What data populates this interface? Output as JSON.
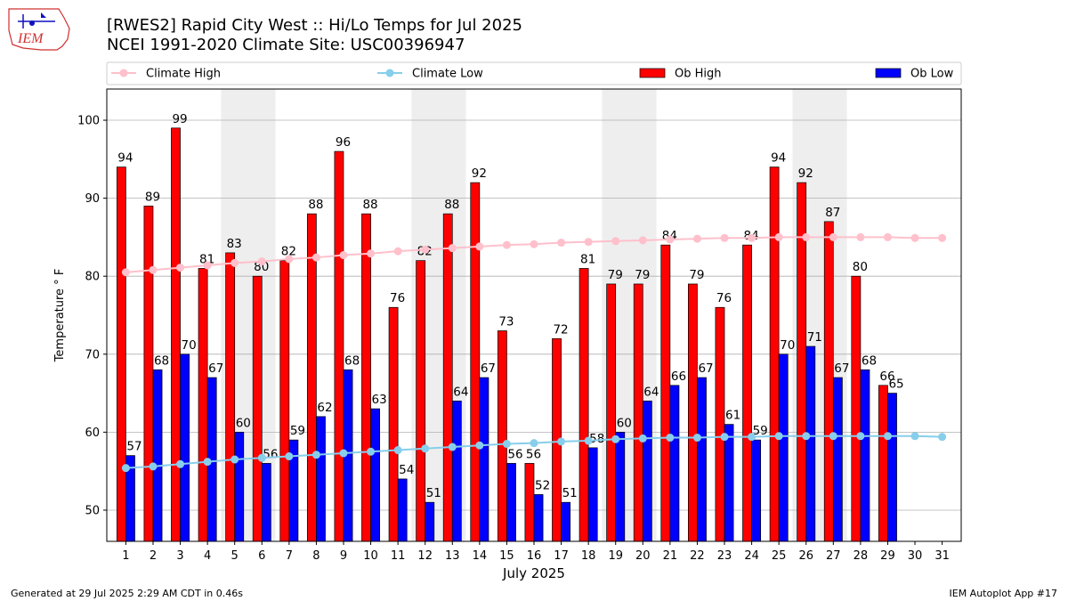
{
  "title_line1": "[RWES2] Rapid City West :: Hi/Lo Temps for Jul 2025",
  "title_line2": "NCEI 1991-2020 Climate Site: USC00396947",
  "logo_text": "IEM",
  "footer_left": "Generated at 29 Jul 2025 2:29 AM CDT in 0.46s",
  "footer_right": "IEM Autoplot App #17",
  "colors": {
    "ob_high": "#ff0000",
    "ob_low": "#0000ff",
    "climate_high": "#ffc0cb",
    "climate_low": "#87ceeb",
    "weekend_shade": "#eeeeee",
    "grid": "#b0b0b0"
  },
  "chart_data": {
    "type": "bar",
    "xlabel": "July 2025",
    "ylabel": "Temperature $^\\circ$F",
    "ylim": [
      46,
      104
    ],
    "yticks": [
      50,
      60,
      70,
      80,
      90,
      100
    ],
    "grid": "horizontal",
    "legend_position": "top",
    "categories": [
      "1",
      "2",
      "3",
      "4",
      "5",
      "6",
      "7",
      "8",
      "9",
      "10",
      "11",
      "12",
      "13",
      "14",
      "15",
      "16",
      "17",
      "18",
      "19",
      "20",
      "21",
      "22",
      "23",
      "24",
      "25",
      "26",
      "27",
      "28",
      "29",
      "30",
      "31"
    ],
    "shaded_weekend_days": [
      [
        5,
        6
      ],
      [
        12,
        13
      ],
      [
        19,
        20
      ],
      [
        26,
        27
      ]
    ],
    "series": [
      {
        "name": "Climate High",
        "kind": "line",
        "values": [
          80.5,
          80.8,
          81.1,
          81.4,
          81.7,
          81.9,
          82.2,
          82.4,
          82.7,
          82.9,
          83.2,
          83.4,
          83.6,
          83.8,
          84.0,
          84.1,
          84.3,
          84.4,
          84.5,
          84.6,
          84.7,
          84.8,
          84.9,
          84.9,
          85.0,
          85.0,
          85.0,
          85.0,
          85.0,
          84.9,
          84.9
        ]
      },
      {
        "name": "Climate Low",
        "kind": "line",
        "values": [
          55.4,
          55.6,
          55.9,
          56.2,
          56.5,
          56.7,
          56.9,
          57.1,
          57.3,
          57.5,
          57.7,
          57.9,
          58.1,
          58.3,
          58.5,
          58.6,
          58.8,
          58.9,
          59.1,
          59.2,
          59.3,
          59.3,
          59.4,
          59.4,
          59.5,
          59.5,
          59.5,
          59.5,
          59.5,
          59.5,
          59.4
        ]
      },
      {
        "name": "Ob High",
        "kind": "bar",
        "values": [
          94,
          89,
          99,
          81,
          83,
          80,
          82,
          88,
          96,
          88,
          76,
          82,
          88,
          92,
          73,
          56,
          72,
          81,
          79,
          79,
          84,
          79,
          76,
          84,
          94,
          92,
          87,
          80,
          66,
          null,
          null
        ]
      },
      {
        "name": "Ob Low",
        "kind": "bar",
        "values": [
          57,
          68,
          70,
          67,
          60,
          56,
          59,
          62,
          68,
          63,
          54,
          51,
          64,
          67,
          56,
          52,
          51,
          58,
          60,
          64,
          66,
          67,
          61,
          59,
          70,
          71,
          67,
          68,
          65,
          null,
          null
        ]
      }
    ]
  }
}
